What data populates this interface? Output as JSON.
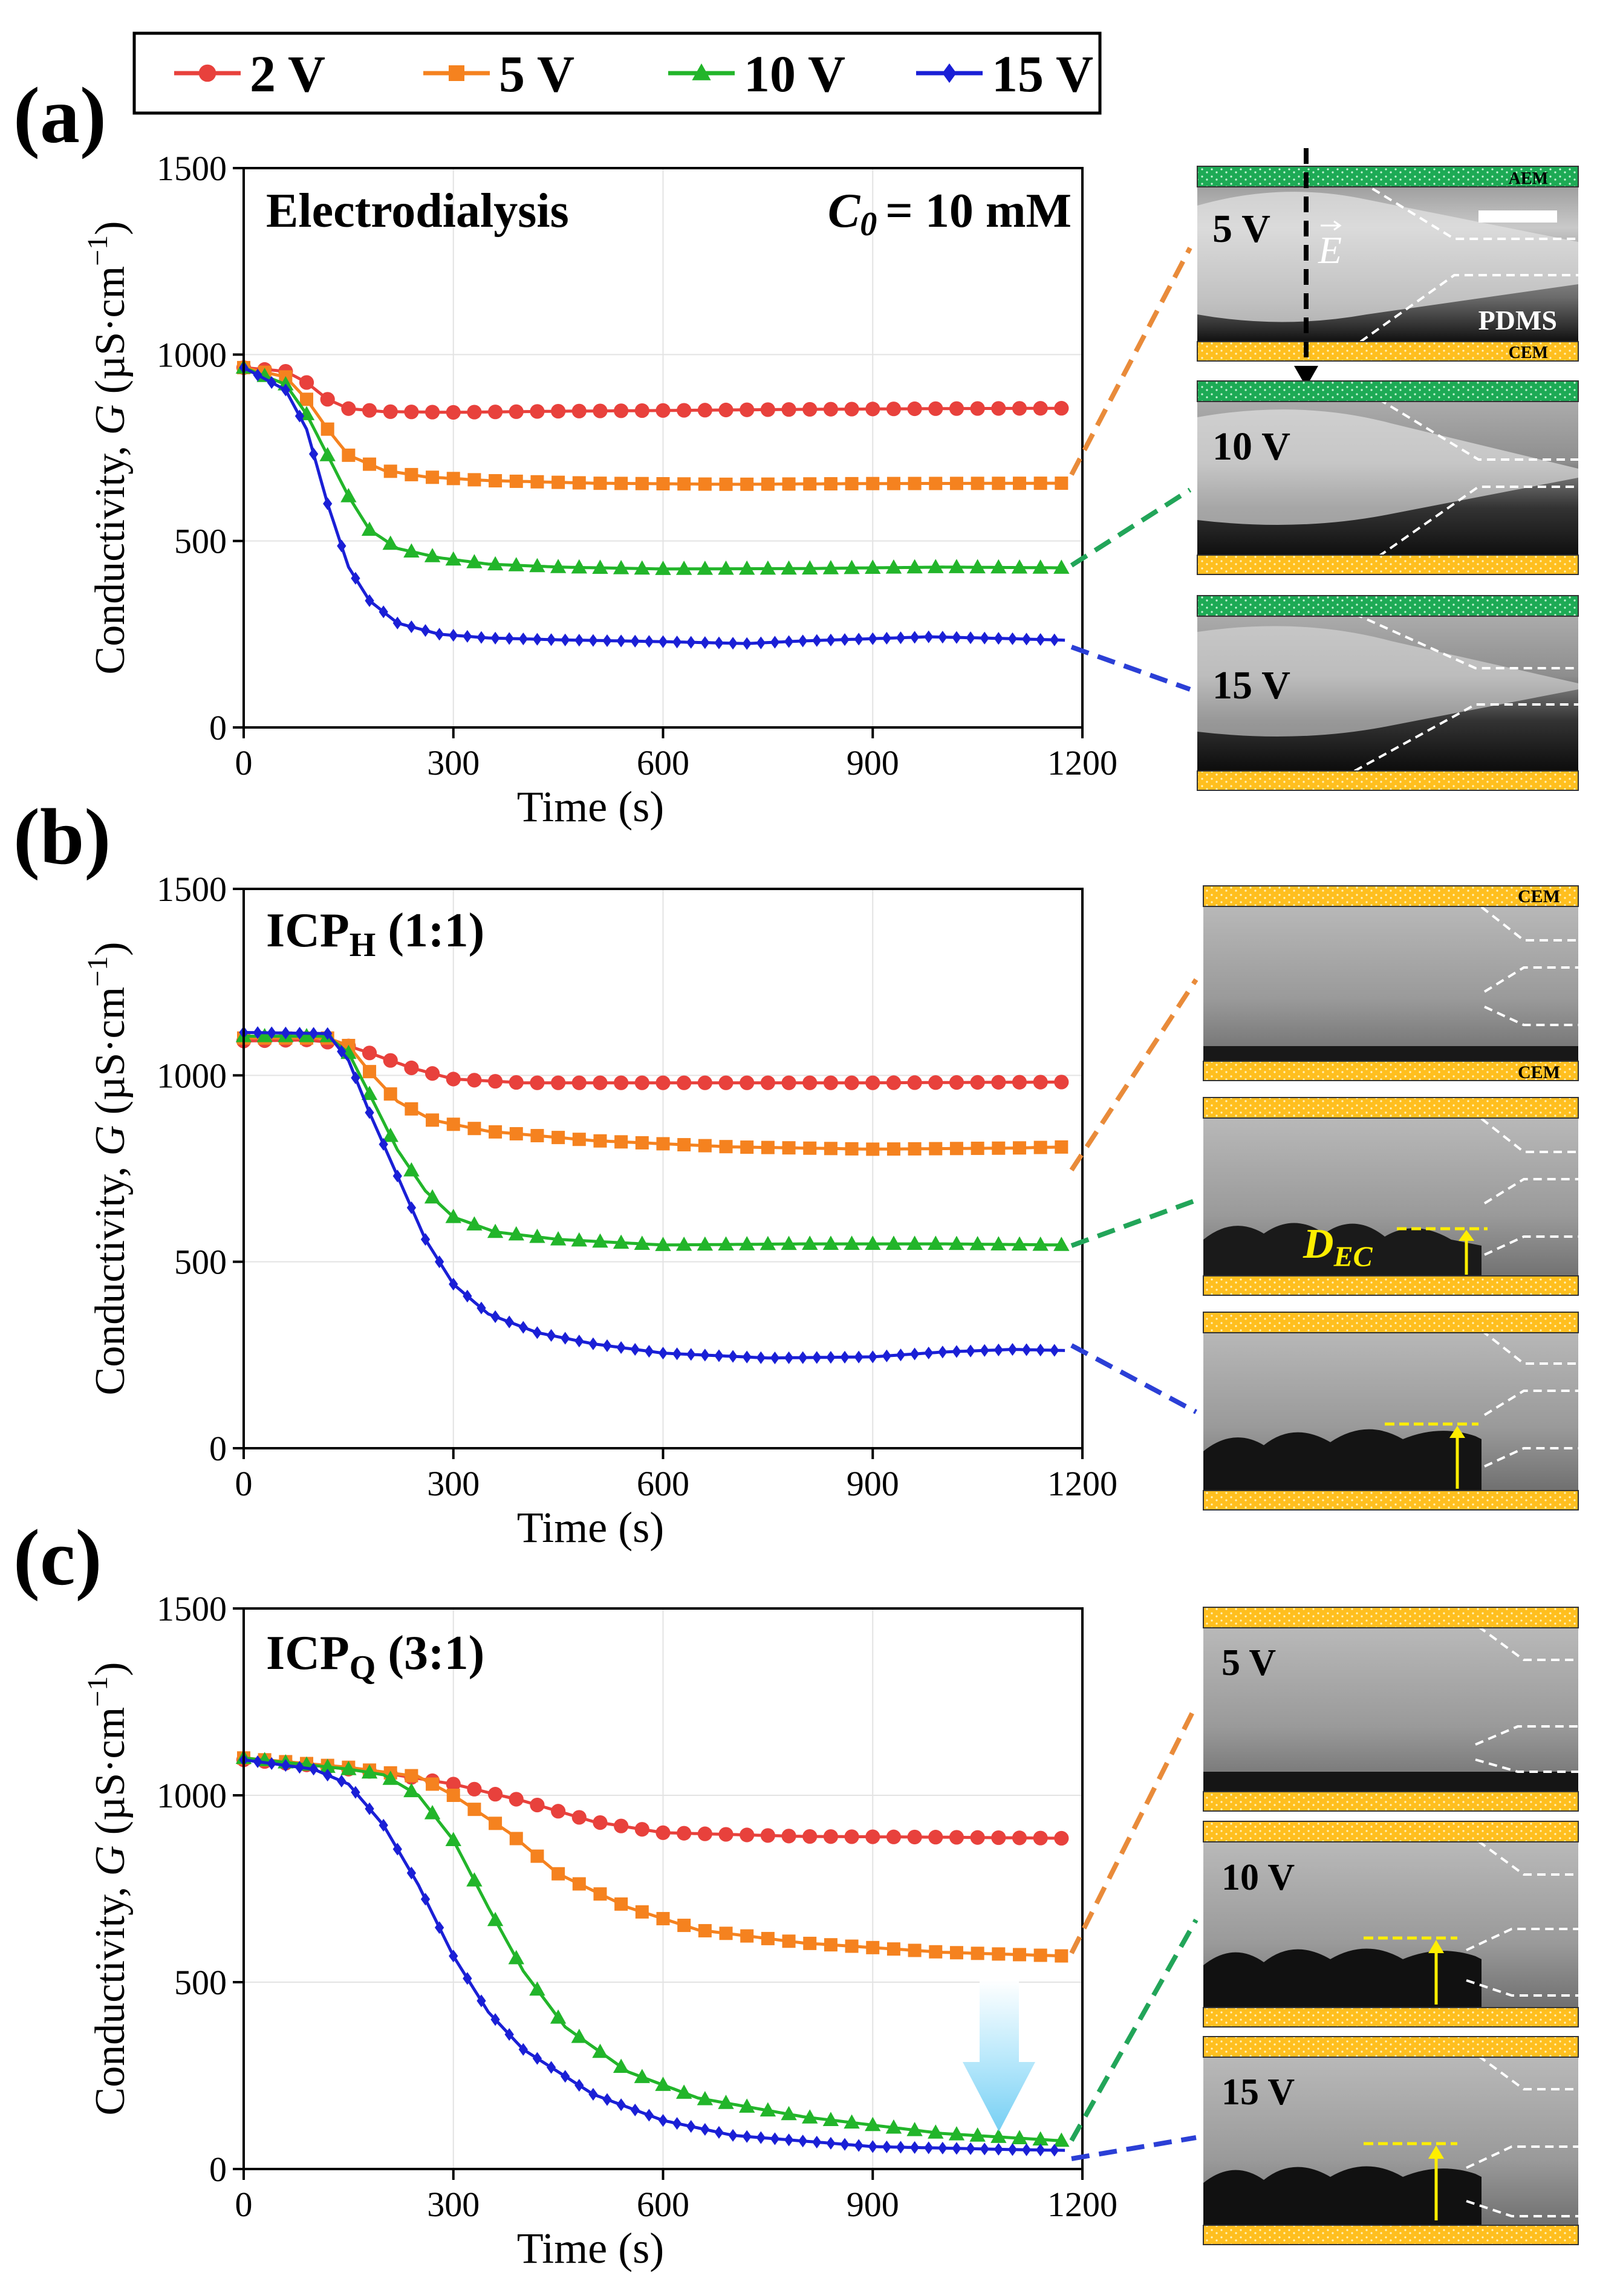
{
  "figure": {
    "legend": [
      {
        "label": "2 V",
        "color": "#e8413c",
        "marker": "circle"
      },
      {
        "label": "5 V",
        "color": "#f5821f",
        "marker": "square"
      },
      {
        "label": "10 V",
        "color": "#22b52a",
        "marker": "triangle"
      },
      {
        "label": "15 V",
        "color": "#1a1fd6",
        "marker": "diamond"
      }
    ],
    "colors": {
      "membrane_cem": "#ffbf1f",
      "membrane_aem": "#1daa55",
      "lead_orange": "#e98b3a",
      "lead_green": "#22a559",
      "lead_blue": "#2b3fd6",
      "annotation_yellow": "#ffee00",
      "arrow_cyan": "#7fd3f5"
    },
    "panels": [
      {
        "letter": "(a)",
        "title": "Electrodialysis",
        "condition_lhs": "C",
        "condition_sub": "0",
        "condition_rhs": "= 10 mM"
      },
      {
        "letter": "(b)",
        "title_main": "ICP",
        "title_sub": "H",
        "title_rest": " (1:1)"
      },
      {
        "letter": "(c)",
        "title_main": "ICP",
        "title_sub": "Q",
        "title_rest": " (3:1)"
      }
    ],
    "axis_text": {
      "ylabel_main": "Conductivity, ",
      "ylabel_var": "G",
      "ylabel_unit": " (µS·cm",
      "ylabel_exp": "−1",
      "ylabel_close": ")",
      "xlabel": "Time (s)"
    },
    "images": {
      "a": {
        "labels": [
          "5 V",
          "10 V",
          "15 V"
        ],
        "aem": "AEM",
        "cem": "CEM",
        "pdms": "PDMS",
        "field": "E"
      },
      "b": {
        "cem_top": "CEM",
        "cem_mid": "CEM",
        "dec_main": "D",
        "dec_sub": "EC"
      },
      "c": {
        "labels": [
          "5 V",
          "10 V",
          "15 V"
        ]
      }
    }
  },
  "chart_data": [
    {
      "type": "line",
      "title": "Electrodialysis",
      "annotation": "C0 = 10 mM",
      "xlabel": "Time (s)",
      "ylabel": "Conductivity, G (µS·cm−1)",
      "xlim": [
        0,
        1200
      ],
      "ylim": [
        0,
        1500
      ],
      "xticks": [
        0,
        300,
        600,
        900,
        1200
      ],
      "yticks": [
        0,
        500,
        1000,
        1500
      ],
      "grid": true,
      "series": [
        {
          "name": "2 V",
          "points": [
            [
              0,
              965
            ],
            [
              60,
              955
            ],
            [
              90,
              925
            ],
            [
              120,
              880
            ],
            [
              150,
              855
            ],
            [
              200,
              847
            ],
            [
              300,
              845
            ],
            [
              450,
              848
            ],
            [
              600,
              850
            ],
            [
              800,
              853
            ],
            [
              1000,
              855
            ],
            [
              1175,
              856
            ]
          ]
        },
        {
          "name": "5 V",
          "points": [
            [
              0,
              965
            ],
            [
              60,
              940
            ],
            [
              90,
              880
            ],
            [
              120,
              800
            ],
            [
              150,
              730
            ],
            [
              200,
              690
            ],
            [
              260,
              672
            ],
            [
              350,
              662
            ],
            [
              500,
              655
            ],
            [
              700,
              652
            ],
            [
              900,
              654
            ],
            [
              1175,
              655
            ]
          ]
        },
        {
          "name": "10 V",
          "points": [
            [
              0,
              965
            ],
            [
              60,
              920
            ],
            [
              90,
              840
            ],
            [
              120,
              730
            ],
            [
              150,
              620
            ],
            [
              180,
              530
            ],
            [
              220,
              480
            ],
            [
              280,
              455
            ],
            [
              350,
              438
            ],
            [
              450,
              430
            ],
            [
              600,
              425
            ],
            [
              800,
              426
            ],
            [
              1000,
              430
            ],
            [
              1175,
              428
            ]
          ]
        },
        {
          "name": "15 V",
          "points": [
            [
              0,
              965
            ],
            [
              60,
              905
            ],
            [
              90,
              800
            ],
            [
              120,
              600
            ],
            [
              150,
              430
            ],
            [
              180,
              340
            ],
            [
              220,
              280
            ],
            [
              280,
              250
            ],
            [
              350,
              240
            ],
            [
              450,
              235
            ],
            [
              600,
              230
            ],
            [
              720,
              225
            ],
            [
              800,
              232
            ],
            [
              900,
              238
            ],
            [
              980,
              243
            ],
            [
              1100,
              238
            ],
            [
              1175,
              234
            ]
          ]
        }
      ]
    },
    {
      "type": "line",
      "title": "ICPH (1:1)",
      "xlabel": "Time (s)",
      "ylabel": "Conductivity, G (µS·cm−1)",
      "xlim": [
        0,
        1200
      ],
      "ylim": [
        0,
        1500
      ],
      "xticks": [
        0,
        300,
        600,
        900,
        1200
      ],
      "yticks": [
        0,
        500,
        1000,
        1500
      ],
      "grid": true,
      "series": [
        {
          "name": "2 V",
          "points": [
            [
              0,
              1092
            ],
            [
              90,
              1095
            ],
            [
              140,
              1085
            ],
            [
              180,
              1060
            ],
            [
              240,
              1020
            ],
            [
              300,
              990
            ],
            [
              400,
              980
            ],
            [
              600,
              980
            ],
            [
              900,
              980
            ],
            [
              1175,
              982
            ]
          ]
        },
        {
          "name": "5 V",
          "points": [
            [
              0,
              1100
            ],
            [
              120,
              1100
            ],
            [
              150,
              1080
            ],
            [
              180,
              1010
            ],
            [
              220,
              930
            ],
            [
              270,
              880
            ],
            [
              350,
              850
            ],
            [
              500,
              825
            ],
            [
              700,
              808
            ],
            [
              900,
              802
            ],
            [
              1100,
              805
            ],
            [
              1175,
              808
            ]
          ]
        },
        {
          "name": "10 V",
          "points": [
            [
              0,
              1105
            ],
            [
              120,
              1105
            ],
            [
              150,
              1060
            ],
            [
              180,
              950
            ],
            [
              220,
              800
            ],
            [
              260,
              690
            ],
            [
              300,
              620
            ],
            [
              360,
              580
            ],
            [
              450,
              560
            ],
            [
              600,
              545
            ],
            [
              800,
              548
            ],
            [
              1000,
              548
            ],
            [
              1175,
              545
            ]
          ]
        },
        {
          "name": "15 V",
          "points": [
            [
              0,
              1115
            ],
            [
              120,
              1112
            ],
            [
              150,
              1040
            ],
            [
              180,
              900
            ],
            [
              220,
              730
            ],
            [
              260,
              560
            ],
            [
              300,
              440
            ],
            [
              350,
              360
            ],
            [
              420,
              310
            ],
            [
              500,
              280
            ],
            [
              600,
              255
            ],
            [
              750,
              242
            ],
            [
              900,
              245
            ],
            [
              1000,
              258
            ],
            [
              1100,
              265
            ],
            [
              1175,
              262
            ]
          ]
        }
      ]
    },
    {
      "type": "line",
      "title": "ICPQ (3:1)",
      "xlabel": "Time (s)",
      "ylabel": "Conductivity, G (µS·cm−1)",
      "xlim": [
        0,
        1200
      ],
      "ylim": [
        0,
        1500
      ],
      "xticks": [
        0,
        300,
        600,
        900,
        1200
      ],
      "yticks": [
        0,
        500,
        1000,
        1500
      ],
      "grid": true,
      "series": [
        {
          "name": "2 V",
          "points": [
            [
              0,
              1095
            ],
            [
              100,
              1080
            ],
            [
              200,
              1060
            ],
            [
              300,
              1030
            ],
            [
              400,
              985
            ],
            [
              500,
              930
            ],
            [
              600,
              900
            ],
            [
              800,
              890
            ],
            [
              1000,
              888
            ],
            [
              1175,
              885
            ]
          ]
        },
        {
          "name": "5 V",
          "points": [
            [
              0,
              1100
            ],
            [
              150,
              1075
            ],
            [
              250,
              1050
            ],
            [
              300,
              1000
            ],
            [
              380,
              900
            ],
            [
              450,
              790
            ],
            [
              550,
              700
            ],
            [
              650,
              640
            ],
            [
              800,
              605
            ],
            [
              1000,
              580
            ],
            [
              1175,
              570
            ]
          ]
        },
        {
          "name": "10 V",
          "points": [
            [
              0,
              1100
            ],
            [
              150,
              1070
            ],
            [
              200,
              1055
            ],
            [
              250,
              1000
            ],
            [
              300,
              880
            ],
            [
              350,
              700
            ],
            [
              400,
              530
            ],
            [
              460,
              380
            ],
            [
              550,
              260
            ],
            [
              650,
              190
            ],
            [
              800,
              140
            ],
            [
              1000,
              95
            ],
            [
              1175,
              75
            ]
          ]
        },
        {
          "name": "15 V",
          "points": [
            [
              0,
              1095
            ],
            [
              100,
              1070
            ],
            [
              150,
              1030
            ],
            [
              200,
              920
            ],
            [
              250,
              760
            ],
            [
              300,
              570
            ],
            [
              350,
              420
            ],
            [
              400,
              320
            ],
            [
              500,
              200
            ],
            [
              600,
              130
            ],
            [
              700,
              90
            ],
            [
              900,
              60
            ],
            [
              1100,
              52
            ],
            [
              1175,
              50
            ]
          ]
        }
      ]
    }
  ]
}
